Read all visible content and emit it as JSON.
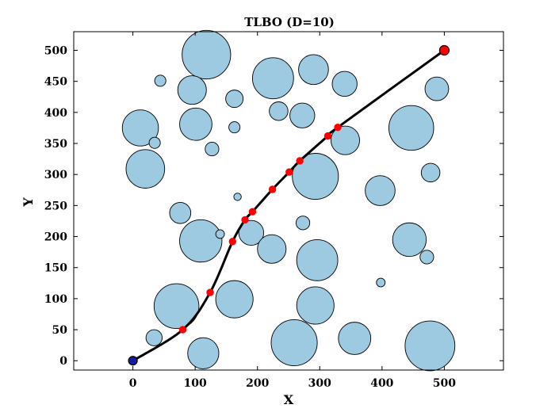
{
  "chart_data": {
    "type": "scatter",
    "title": "TLBO (D=10)",
    "xlabel": "X",
    "ylabel": "Y",
    "xlim": [
      -95,
      595
    ],
    "ylim": [
      -15,
      530
    ],
    "xticks": [
      0,
      100,
      200,
      300,
      400,
      500
    ],
    "yticks": [
      0,
      50,
      100,
      150,
      200,
      250,
      300,
      350,
      400,
      450,
      500
    ],
    "grid": false,
    "obstacle_color": "#9ecae1",
    "path_color": "#000000",
    "waypoint_color": "#ff0000",
    "start_color": "#1a1aa0",
    "obstacles": [
      {
        "x": 118,
        "y": 493,
        "r": 39
      },
      {
        "x": 44,
        "y": 451,
        "r": 9
      },
      {
        "x": 95,
        "y": 436,
        "r": 23
      },
      {
        "x": 163,
        "y": 422,
        "r": 14
      },
      {
        "x": 225,
        "y": 455,
        "r": 33
      },
      {
        "x": 290,
        "y": 469,
        "r": 24
      },
      {
        "x": 340,
        "y": 446,
        "r": 20
      },
      {
        "x": 488,
        "y": 438,
        "r": 19
      },
      {
        "x": 234,
        "y": 402,
        "r": 15
      },
      {
        "x": 272,
        "y": 395,
        "r": 20
      },
      {
        "x": 12,
        "y": 375,
        "r": 29
      },
      {
        "x": 101,
        "y": 381,
        "r": 26
      },
      {
        "x": 163,
        "y": 376,
        "r": 9
      },
      {
        "x": 35,
        "y": 351,
        "r": 9
      },
      {
        "x": 127,
        "y": 341,
        "r": 11
      },
      {
        "x": 341,
        "y": 355,
        "r": 23
      },
      {
        "x": 447,
        "y": 375,
        "r": 36
      },
      {
        "x": 20,
        "y": 309,
        "r": 31
      },
      {
        "x": 293,
        "y": 297,
        "r": 37
      },
      {
        "x": 478,
        "y": 303,
        "r": 15
      },
      {
        "x": 168,
        "y": 264,
        "r": 6
      },
      {
        "x": 397,
        "y": 274,
        "r": 24
      },
      {
        "x": 76,
        "y": 238,
        "r": 17
      },
      {
        "x": 273,
        "y": 222,
        "r": 11
      },
      {
        "x": 109,
        "y": 193,
        "r": 34
      },
      {
        "x": 140,
        "y": 204,
        "r": 7
      },
      {
        "x": 190,
        "y": 206,
        "r": 20
      },
      {
        "x": 223,
        "y": 180,
        "r": 23
      },
      {
        "x": 296,
        "y": 162,
        "r": 33
      },
      {
        "x": 444,
        "y": 195,
        "r": 27
      },
      {
        "x": 472,
        "y": 167,
        "r": 11
      },
      {
        "x": 398,
        "y": 126,
        "r": 7
      },
      {
        "x": 70,
        "y": 88,
        "r": 36
      },
      {
        "x": 163,
        "y": 99,
        "r": 30
      },
      {
        "x": 293,
        "y": 89,
        "r": 30
      },
      {
        "x": 34,
        "y": 37,
        "r": 13
      },
      {
        "x": 113,
        "y": 12,
        "r": 25
      },
      {
        "x": 259,
        "y": 29,
        "r": 37
      },
      {
        "x": 356,
        "y": 36,
        "r": 26
      },
      {
        "x": 477,
        "y": 24,
        "r": 40
      }
    ],
    "path": [
      {
        "x": 0,
        "y": 0
      },
      {
        "x": 80,
        "y": 50
      },
      {
        "x": 124,
        "y": 110
      },
      {
        "x": 160,
        "y": 192
      },
      {
        "x": 180,
        "y": 227
      },
      {
        "x": 192,
        "y": 240
      },
      {
        "x": 224,
        "y": 276
      },
      {
        "x": 251,
        "y": 304
      },
      {
        "x": 268,
        "y": 322
      },
      {
        "x": 313,
        "y": 362
      },
      {
        "x": 329,
        "y": 376
      },
      {
        "x": 500,
        "y": 500
      }
    ],
    "waypoints": [
      {
        "x": 80,
        "y": 50
      },
      {
        "x": 124,
        "y": 110
      },
      {
        "x": 160,
        "y": 192
      },
      {
        "x": 180,
        "y": 227
      },
      {
        "x": 192,
        "y": 240
      },
      {
        "x": 224,
        "y": 276
      },
      {
        "x": 251,
        "y": 304
      },
      {
        "x": 268,
        "y": 322
      },
      {
        "x": 313,
        "y": 362
      },
      {
        "x": 329,
        "y": 376
      }
    ],
    "start": {
      "x": 0,
      "y": 0
    },
    "goal": {
      "x": 500,
      "y": 500
    }
  }
}
